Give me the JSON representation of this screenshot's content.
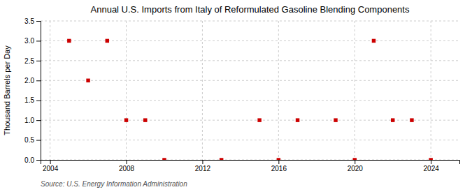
{
  "chart_data": {
    "type": "scatter",
    "title": "Annual U.S. Imports from Italy of Reformulated Gasoline Blending Components",
    "ylabel": "Thousand Barrels per Day",
    "source": "Source: U.S. Energy Information Administration",
    "x": [
      2005,
      2006,
      2007,
      2008,
      2009,
      2010,
      2013,
      2015,
      2016,
      2017,
      2019,
      2020,
      2021,
      2022,
      2023,
      2024
    ],
    "values": [
      3.0,
      2.0,
      3.0,
      1.0,
      1.0,
      0.0,
      0.0,
      1.0,
      0.0,
      1.0,
      1.0,
      0.0,
      3.0,
      1.0,
      1.0,
      0.0
    ],
    "color": "#cc0000",
    "marker": "square",
    "xlim": [
      2003.5,
      2025.5
    ],
    "ylim": [
      0.0,
      3.5
    ],
    "xticks": [
      2004,
      2008,
      2012,
      2016,
      2020,
      2024
    ],
    "yticks": [
      {
        "value": 0.0,
        "label": "0.0"
      },
      0.5,
      {
        "value": 1.0,
        "label": "1.0"
      },
      1.5,
      {
        "value": 2.0,
        "label": "2.0"
      },
      2.5,
      {
        "value": 3.0,
        "label": "3.0"
      },
      3.5
    ],
    "grid": true
  }
}
